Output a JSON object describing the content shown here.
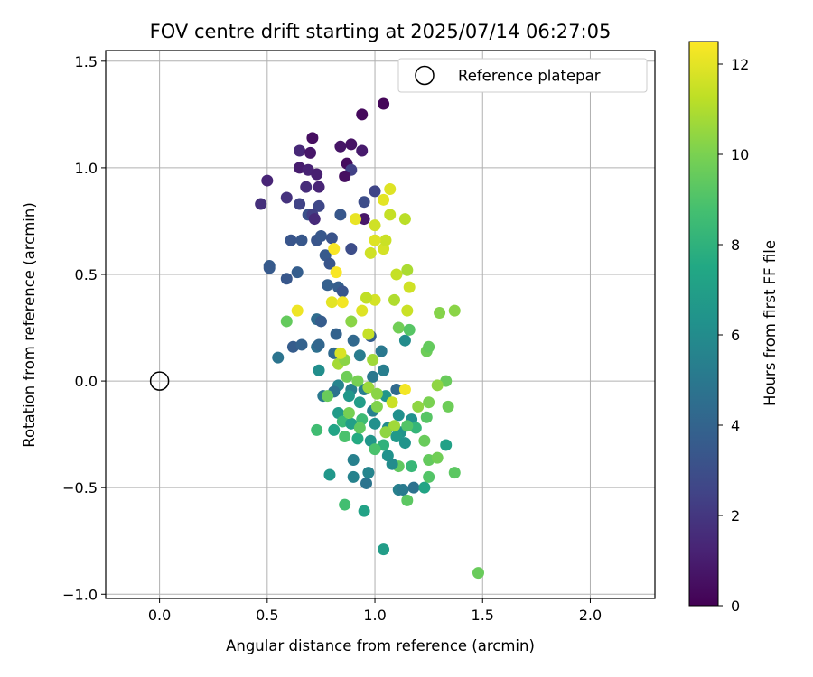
{
  "chart_data": {
    "type": "scatter",
    "title": "FOV centre drift starting at 2025/07/14 06:27:05",
    "xlabel": "Angular distance from reference (arcmin)",
    "ylabel": "Rotation from reference (arcmin)",
    "xlim": [
      -0.25,
      2.3
    ],
    "ylim": [
      -1.02,
      1.55
    ],
    "xticks": [
      0.0,
      0.5,
      1.0,
      1.5,
      2.0
    ],
    "xtick_labels": [
      "0.0",
      "0.5",
      "1.0",
      "1.5",
      "2.0"
    ],
    "yticks": [
      -1.0,
      -0.5,
      0.0,
      0.5,
      1.0,
      1.5
    ],
    "ytick_labels": [
      "−1.0",
      "−0.5",
      "0.0",
      "0.5",
      "1.0",
      "1.5"
    ],
    "grid": true,
    "legend": {
      "placement": "top-right",
      "entries": [
        "Reference platepar"
      ]
    },
    "reference_point": {
      "x": 0.0,
      "y": 0.0,
      "label": "Reference platepar"
    },
    "colorbar": {
      "label": "Hours from first FF file",
      "range": [
        0,
        12.5
      ],
      "ticks": [
        0,
        2,
        4,
        6,
        8,
        10,
        12
      ],
      "tick_labels": [
        "0",
        "2",
        "4",
        "6",
        "8",
        "10",
        "12"
      ],
      "colormap": "viridis"
    },
    "points": [
      {
        "x": 1.04,
        "y": 1.3,
        "h": 0.2
      },
      {
        "x": 0.94,
        "y": 1.25,
        "h": 0.3
      },
      {
        "x": 0.71,
        "y": 1.14,
        "h": 0.5
      },
      {
        "x": 0.89,
        "y": 1.11,
        "h": 0.6
      },
      {
        "x": 0.84,
        "y": 1.1,
        "h": 0.7
      },
      {
        "x": 0.65,
        "y": 1.08,
        "h": 1.4
      },
      {
        "x": 0.7,
        "y": 1.07,
        "h": 0.8
      },
      {
        "x": 0.94,
        "y": 1.08,
        "h": 0.9
      },
      {
        "x": 0.87,
        "y": 1.02,
        "h": 0.4
      },
      {
        "x": 0.65,
        "y": 1.0,
        "h": 1.0
      },
      {
        "x": 0.69,
        "y": 0.99,
        "h": 1.2
      },
      {
        "x": 0.73,
        "y": 0.97,
        "h": 1.1
      },
      {
        "x": 0.89,
        "y": 0.99,
        "h": 2.4
      },
      {
        "x": 0.86,
        "y": 0.96,
        "h": 0.5
      },
      {
        "x": 0.5,
        "y": 0.94,
        "h": 1.3
      },
      {
        "x": 0.68,
        "y": 0.91,
        "h": 1.6
      },
      {
        "x": 0.74,
        "y": 0.91,
        "h": 1.3
      },
      {
        "x": 1.0,
        "y": 0.89,
        "h": 2.6
      },
      {
        "x": 0.59,
        "y": 0.86,
        "h": 1.8
      },
      {
        "x": 0.47,
        "y": 0.83,
        "h": 1.7
      },
      {
        "x": 0.65,
        "y": 0.83,
        "h": 2.5
      },
      {
        "x": 0.74,
        "y": 0.82,
        "h": 2.7
      },
      {
        "x": 0.95,
        "y": 0.84,
        "h": 2.9
      },
      {
        "x": 0.69,
        "y": 0.78,
        "h": 3.1
      },
      {
        "x": 0.71,
        "y": 0.78,
        "h": 2.3
      },
      {
        "x": 0.72,
        "y": 0.76,
        "h": 1.5
      },
      {
        "x": 0.84,
        "y": 0.78,
        "h": 3.4
      },
      {
        "x": 0.95,
        "y": 0.76,
        "h": 0.8
      },
      {
        "x": 0.61,
        "y": 0.66,
        "h": 3.3
      },
      {
        "x": 0.66,
        "y": 0.66,
        "h": 3.4
      },
      {
        "x": 0.73,
        "y": 0.66,
        "h": 3.3
      },
      {
        "x": 0.75,
        "y": 0.68,
        "h": 3.4
      },
      {
        "x": 0.8,
        "y": 0.67,
        "h": 3.2
      },
      {
        "x": 0.89,
        "y": 0.62,
        "h": 2.9
      },
      {
        "x": 0.77,
        "y": 0.59,
        "h": 3.5
      },
      {
        "x": 0.79,
        "y": 0.55,
        "h": 3.3
      },
      {
        "x": 0.51,
        "y": 0.54,
        "h": 3.6
      },
      {
        "x": 0.51,
        "y": 0.53,
        "h": 3.5
      },
      {
        "x": 0.59,
        "y": 0.48,
        "h": 3.4
      },
      {
        "x": 0.64,
        "y": 0.51,
        "h": 3.7
      },
      {
        "x": 0.78,
        "y": 0.45,
        "h": 3.8
      },
      {
        "x": 0.83,
        "y": 0.44,
        "h": 3.7
      },
      {
        "x": 0.85,
        "y": 0.42,
        "h": 3.3
      },
      {
        "x": 0.73,
        "y": 0.29,
        "h": 4.4
      },
      {
        "x": 0.75,
        "y": 0.28,
        "h": 3.6
      },
      {
        "x": 0.82,
        "y": 0.22,
        "h": 3.9
      },
      {
        "x": 0.9,
        "y": 0.19,
        "h": 4.2
      },
      {
        "x": 0.98,
        "y": 0.21,
        "h": 3.7
      },
      {
        "x": 0.62,
        "y": 0.16,
        "h": 3.6
      },
      {
        "x": 0.66,
        "y": 0.17,
        "h": 3.9
      },
      {
        "x": 0.73,
        "y": 0.16,
        "h": 4.6
      },
      {
        "x": 0.55,
        "y": 0.11,
        "h": 4.8
      },
      {
        "x": 0.74,
        "y": 0.17,
        "h": 4.1
      },
      {
        "x": 0.81,
        "y": 0.13,
        "h": 4.3
      },
      {
        "x": 0.93,
        "y": 0.12,
        "h": 5.2
      },
      {
        "x": 1.03,
        "y": 0.14,
        "h": 5.0
      },
      {
        "x": 1.14,
        "y": 0.19,
        "h": 6.0
      },
      {
        "x": 1.04,
        "y": 0.05,
        "h": 5.3
      },
      {
        "x": 0.74,
        "y": 0.05,
        "h": 6.1
      },
      {
        "x": 0.83,
        "y": -0.02,
        "h": 5.6
      },
      {
        "x": 0.89,
        "y": -0.04,
        "h": 5.4
      },
      {
        "x": 0.95,
        "y": -0.04,
        "h": 5.3
      },
      {
        "x": 0.99,
        "y": 0.02,
        "h": 5.0
      },
      {
        "x": 1.1,
        "y": -0.04,
        "h": 4.3
      },
      {
        "x": 0.76,
        "y": -0.07,
        "h": 5.0
      },
      {
        "x": 0.81,
        "y": -0.05,
        "h": 4.7
      },
      {
        "x": 0.88,
        "y": -0.07,
        "h": 6.6
      },
      {
        "x": 0.93,
        "y": -0.1,
        "h": 6.9
      },
      {
        "x": 0.99,
        "y": -0.14,
        "h": 5.4
      },
      {
        "x": 1.05,
        "y": -0.07,
        "h": 6.5
      },
      {
        "x": 1.11,
        "y": -0.16,
        "h": 6.2
      },
      {
        "x": 1.17,
        "y": -0.18,
        "h": 6.3
      },
      {
        "x": 0.83,
        "y": -0.15,
        "h": 6.8
      },
      {
        "x": 0.85,
        "y": -0.19,
        "h": 8.4
      },
      {
        "x": 0.89,
        "y": -0.2,
        "h": 7.0
      },
      {
        "x": 0.94,
        "y": -0.18,
        "h": 8.5
      },
      {
        "x": 1.0,
        "y": -0.2,
        "h": 6.2
      },
      {
        "x": 1.06,
        "y": -0.22,
        "h": 6.0
      },
      {
        "x": 1.12,
        "y": -0.24,
        "h": 6.4
      },
      {
        "x": 1.19,
        "y": -0.22,
        "h": 8.2
      },
      {
        "x": 0.81,
        "y": -0.23,
        "h": 7.3
      },
      {
        "x": 0.86,
        "y": -0.26,
        "h": 8.9
      },
      {
        "x": 0.92,
        "y": -0.27,
        "h": 7.6
      },
      {
        "x": 0.98,
        "y": -0.28,
        "h": 6.5
      },
      {
        "x": 1.04,
        "y": -0.3,
        "h": 8.0
      },
      {
        "x": 1.1,
        "y": -0.26,
        "h": 6.7
      },
      {
        "x": 1.14,
        "y": -0.29,
        "h": 6.4
      },
      {
        "x": 1.23,
        "y": -0.28,
        "h": 9.6
      },
      {
        "x": 0.73,
        "y": -0.23,
        "h": 8.6
      },
      {
        "x": 0.9,
        "y": -0.37,
        "h": 5.4
      },
      {
        "x": 1.0,
        "y": -0.32,
        "h": 8.9
      },
      {
        "x": 1.06,
        "y": -0.35,
        "h": 6.3
      },
      {
        "x": 1.11,
        "y": -0.4,
        "h": 9.4
      },
      {
        "x": 1.08,
        "y": -0.39,
        "h": 6.0
      },
      {
        "x": 1.17,
        "y": -0.4,
        "h": 8.3
      },
      {
        "x": 1.25,
        "y": -0.37,
        "h": 9.5
      },
      {
        "x": 1.29,
        "y": -0.36,
        "h": 9.8
      },
      {
        "x": 1.33,
        "y": -0.3,
        "h": 7.1
      },
      {
        "x": 0.79,
        "y": -0.44,
        "h": 6.6
      },
      {
        "x": 0.9,
        "y": -0.45,
        "h": 5.5
      },
      {
        "x": 0.97,
        "y": -0.43,
        "h": 5.6
      },
      {
        "x": 0.96,
        "y": -0.48,
        "h": 4.8
      },
      {
        "x": 1.11,
        "y": -0.51,
        "h": 5.4
      },
      {
        "x": 1.13,
        "y": -0.51,
        "h": 5.1
      },
      {
        "x": 1.18,
        "y": -0.5,
        "h": 4.7
      },
      {
        "x": 1.23,
        "y": -0.5,
        "h": 7.3
      },
      {
        "x": 1.25,
        "y": -0.45,
        "h": 9.1
      },
      {
        "x": 1.15,
        "y": -0.56,
        "h": 9.3
      },
      {
        "x": 0.86,
        "y": -0.58,
        "h": 8.7
      },
      {
        "x": 0.95,
        "y": -0.61,
        "h": 7.2
      },
      {
        "x": 1.04,
        "y": -0.79,
        "h": 6.9
      },
      {
        "x": 1.48,
        "y": -0.9,
        "h": 9.6
      },
      {
        "x": 1.37,
        "y": -0.43,
        "h": 9.3
      },
      {
        "x": 1.34,
        "y": -0.12,
        "h": 9.7
      },
      {
        "x": 1.33,
        "y": 0.0,
        "h": 9.6
      },
      {
        "x": 1.29,
        "y": -0.02,
        "h": 10.4
      },
      {
        "x": 1.24,
        "y": -0.17,
        "h": 9.2
      },
      {
        "x": 1.25,
        "y": -0.1,
        "h": 10.0
      },
      {
        "x": 1.2,
        "y": -0.12,
        "h": 10.4
      },
      {
        "x": 1.15,
        "y": -0.21,
        "h": 9.1
      },
      {
        "x": 1.09,
        "y": -0.21,
        "h": 10.7
      },
      {
        "x": 1.01,
        "y": -0.12,
        "h": 10.1
      },
      {
        "x": 0.97,
        "y": -0.03,
        "h": 10.6
      },
      {
        "x": 0.92,
        "y": 0.0,
        "h": 9.9
      },
      {
        "x": 0.87,
        "y": 0.02,
        "h": 9.7
      },
      {
        "x": 0.83,
        "y": 0.08,
        "h": 10.8
      },
      {
        "x": 0.86,
        "y": 0.1,
        "h": 10.3
      },
      {
        "x": 0.99,
        "y": 0.1,
        "h": 10.7
      },
      {
        "x": 0.59,
        "y": 0.28,
        "h": 9.5
      },
      {
        "x": 0.89,
        "y": 0.28,
        "h": 10.3
      },
      {
        "x": 0.97,
        "y": 0.22,
        "h": 11.4
      },
      {
        "x": 1.11,
        "y": 0.25,
        "h": 9.8
      },
      {
        "x": 1.16,
        "y": 0.24,
        "h": 9.2
      },
      {
        "x": 1.24,
        "y": 0.14,
        "h": 9.7
      },
      {
        "x": 1.25,
        "y": 0.16,
        "h": 9.5
      },
      {
        "x": 1.3,
        "y": 0.32,
        "h": 10.2
      },
      {
        "x": 1.37,
        "y": 0.33,
        "h": 10.3
      },
      {
        "x": 1.15,
        "y": 0.33,
        "h": 11.5
      },
      {
        "x": 1.09,
        "y": 0.38,
        "h": 11.0
      },
      {
        "x": 1.0,
        "y": 0.38,
        "h": 11.7
      },
      {
        "x": 0.96,
        "y": 0.39,
        "h": 11.3
      },
      {
        "x": 0.94,
        "y": 0.33,
        "h": 11.9
      },
      {
        "x": 0.64,
        "y": 0.33,
        "h": 12.2
      },
      {
        "x": 0.8,
        "y": 0.37,
        "h": 12.0
      },
      {
        "x": 0.85,
        "y": 0.37,
        "h": 12.3
      },
      {
        "x": 0.82,
        "y": 0.51,
        "h": 12.4
      },
      {
        "x": 1.16,
        "y": 0.44,
        "h": 11.6
      },
      {
        "x": 1.15,
        "y": 0.52,
        "h": 10.9
      },
      {
        "x": 1.1,
        "y": 0.5,
        "h": 11.4
      },
      {
        "x": 1.04,
        "y": 0.62,
        "h": 11.7
      },
      {
        "x": 1.05,
        "y": 0.66,
        "h": 11.5
      },
      {
        "x": 1.0,
        "y": 0.66,
        "h": 11.9
      },
      {
        "x": 0.98,
        "y": 0.6,
        "h": 11.6
      },
      {
        "x": 0.81,
        "y": 0.62,
        "h": 12.4
      },
      {
        "x": 0.91,
        "y": 0.76,
        "h": 12.1
      },
      {
        "x": 1.0,
        "y": 0.73,
        "h": 11.6
      },
      {
        "x": 1.07,
        "y": 0.78,
        "h": 11.4
      },
      {
        "x": 1.14,
        "y": 0.76,
        "h": 11.2
      },
      {
        "x": 1.04,
        "y": 0.85,
        "h": 12.0
      },
      {
        "x": 1.07,
        "y": 0.9,
        "h": 11.9
      },
      {
        "x": 1.14,
        "y": -0.04,
        "h": 12.3
      },
      {
        "x": 1.08,
        "y": -0.1,
        "h": 11.5
      },
      {
        "x": 1.05,
        "y": -0.24,
        "h": 10.4
      },
      {
        "x": 1.01,
        "y": -0.06,
        "h": 10.3
      },
      {
        "x": 0.84,
        "y": 0.13,
        "h": 11.8
      },
      {
        "x": 0.88,
        "y": -0.15,
        "h": 9.9
      },
      {
        "x": 0.78,
        "y": -0.07,
        "h": 9.6
      },
      {
        "x": 0.93,
        "y": -0.22,
        "h": 9.4
      }
    ]
  }
}
